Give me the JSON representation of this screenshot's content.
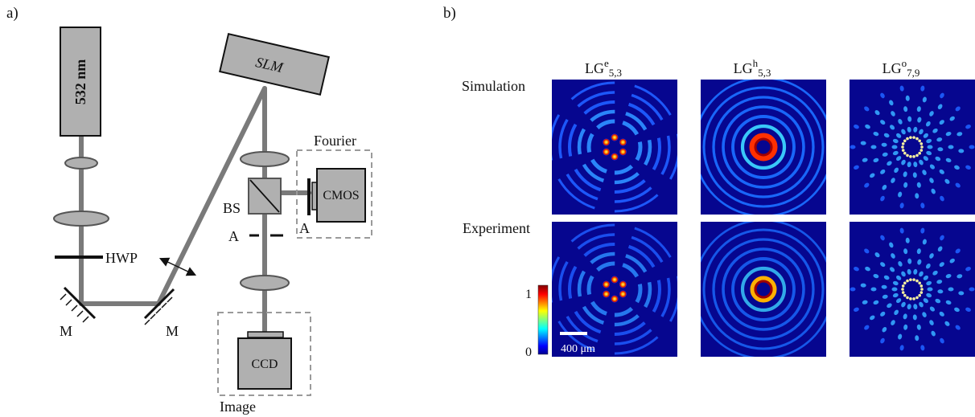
{
  "panel_a": {
    "letter": "a)",
    "laser_label": "532 nm",
    "slm_label": "SLM",
    "hwp_label": "HWP",
    "mirror_label_left": "M",
    "mirror_label_right": "M",
    "bs_label": "BS",
    "aperture_label_image": "A",
    "aperture_label_fourier": "A",
    "cmos_label": "CMOS",
    "ccd_label": "CCD",
    "fourier_label": "Fourier",
    "image_label": "Image"
  },
  "panel_b": {
    "letter": "b)",
    "columns": [
      {
        "base": "LG",
        "sup": "e",
        "sub": "5,3"
      },
      {
        "base": "LG",
        "sup": "h",
        "sub": "5,3"
      },
      {
        "base": "LG",
        "sup": "o",
        "sub": "7,9"
      }
    ],
    "row_labels": [
      "Simulation",
      "Experiment"
    ],
    "colorbar_max": "1",
    "colorbar_min": "0",
    "scalebar_label": "400 μm"
  },
  "colors": {
    "beam": "#7a7a7a",
    "component_fill": "#b0b0b0",
    "field_background": "#06068f",
    "dashed_box": "#9a9a9a"
  }
}
